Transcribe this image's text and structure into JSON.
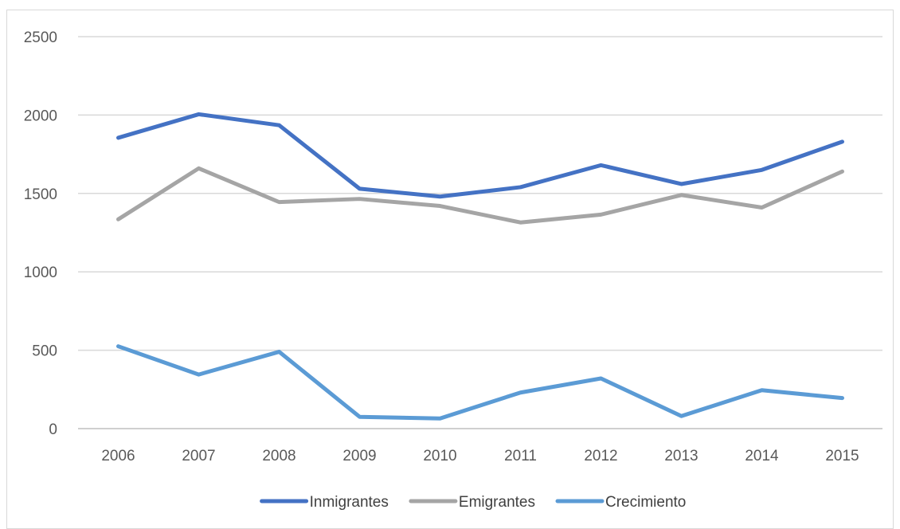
{
  "chart_data": {
    "type": "line",
    "title": "",
    "xlabel": "",
    "ylabel": "",
    "categories": [
      "2006",
      "2007",
      "2008",
      "2009",
      "2010",
      "2011",
      "2012",
      "2013",
      "2014",
      "2015"
    ],
    "ylim": [
      0,
      2500
    ],
    "yticks": [
      0,
      500,
      1000,
      1500,
      2000,
      2500
    ],
    "grid": true,
    "legend_position": "bottom",
    "series": [
      {
        "name": "Inmigrantes",
        "color": "#4472c4",
        "values": [
          1855,
          2005,
          1935,
          1530,
          1480,
          1540,
          1680,
          1560,
          1650,
          1830
        ]
      },
      {
        "name": "Emigrantes",
        "color": "#a5a5a5",
        "values": [
          1335,
          1660,
          1445,
          1465,
          1420,
          1315,
          1365,
          1490,
          1410,
          1640
        ]
      },
      {
        "name": "Crecimiento",
        "color": "#5b9bd5",
        "values": [
          525,
          345,
          490,
          75,
          65,
          230,
          320,
          80,
          245,
          195
        ]
      }
    ]
  }
}
